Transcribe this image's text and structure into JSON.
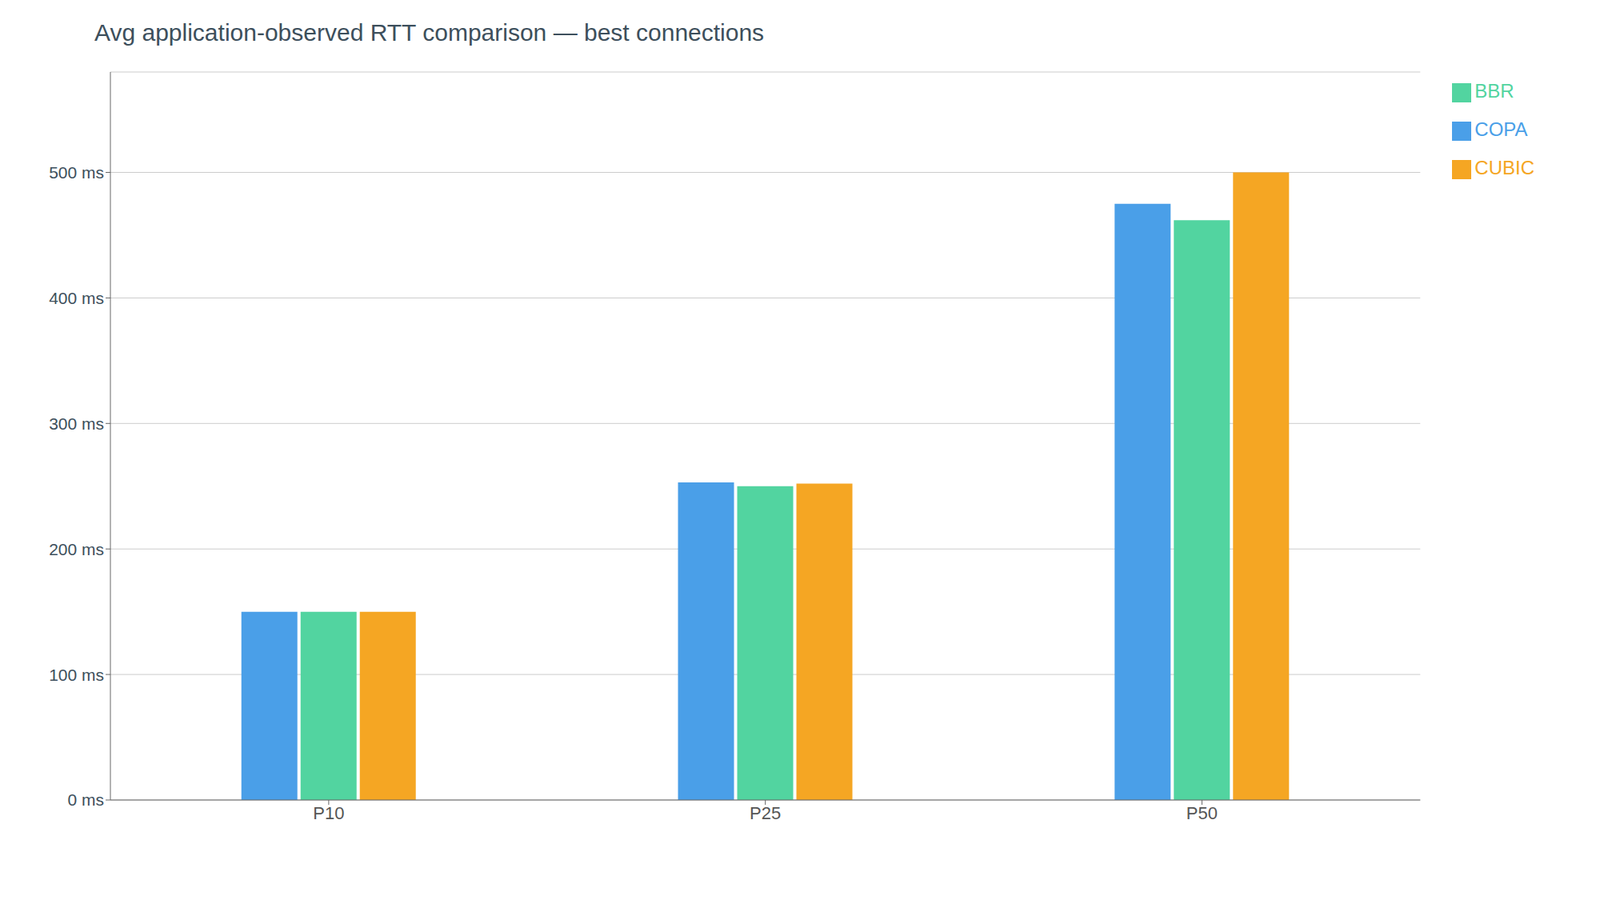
{
  "chart_data": {
    "type": "bar",
    "title": "Avg application-observed RTT comparison — best connections",
    "categories": [
      "P10",
      "P25",
      "P50"
    ],
    "series": [
      {
        "name": "COPA",
        "color": "#4a9fe8",
        "values": [
          150,
          253,
          475
        ]
      },
      {
        "name": "BBR",
        "color": "#52d4a0",
        "values": [
          150,
          250,
          462
        ]
      },
      {
        "name": "CUBIC",
        "color": "#f5a623",
        "values": [
          150,
          252,
          500
        ]
      }
    ],
    "ylim": [
      0,
      580
    ],
    "yticks": [
      {
        "value": 0,
        "label": "0 ms"
      },
      {
        "value": 100,
        "label": "100 ms"
      },
      {
        "value": 200,
        "label": "200 ms"
      },
      {
        "value": 300,
        "label": "300 ms"
      },
      {
        "value": 400,
        "label": "400 ms"
      },
      {
        "value": 500,
        "label": "500 ms"
      }
    ],
    "grid": true,
    "legend": "right"
  }
}
